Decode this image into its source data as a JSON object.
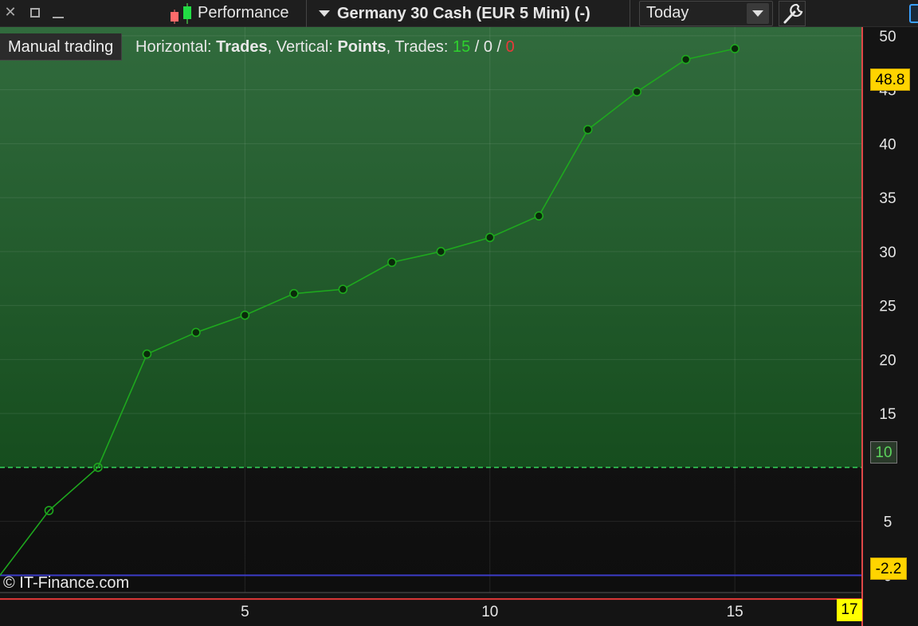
{
  "toolbar": {
    "close_glyph": "✕",
    "panel_label": "Performance",
    "instrument": "Germany 30 Cash (EUR 5 Mini) (-)",
    "period": "Today"
  },
  "header": {
    "manual_trading": "Manual trading",
    "horizontal_label": "Horizontal: ",
    "horizontal_value": "Trades",
    "vertical_label": ", Vertical: ",
    "vertical_value": "Points",
    "trades_label": ", Trades: ",
    "trades_total": "15",
    "sep1": " / ",
    "trades_neutral": "0",
    "sep2": " / ",
    "trades_losing": "0"
  },
  "copyright": "© IT-Finance.com",
  "tags": {
    "top_value": "48.8",
    "bottom_value": "-2.2",
    "threshold_value": "10",
    "last_x": "17"
  },
  "colors": {
    "line": "#1ea81e",
    "profit_zone_top": "#316b3d",
    "profit_zone_bottom": "#164d1e",
    "zero_line": "#3c3cc8",
    "drawdown_line": "#e23838",
    "axis_border": "#e04848"
  },
  "chart_data": {
    "type": "line",
    "title": "",
    "xlabel": "Trades",
    "ylabel": "Points",
    "x": [
      0,
      1,
      2,
      3,
      4,
      5,
      6,
      7,
      8,
      9,
      10,
      11,
      12,
      13,
      14,
      15
    ],
    "series": [
      {
        "values": [
          0,
          6,
          10,
          20.5,
          22.5,
          24.1,
          26.1,
          26.5,
          29,
          30,
          31.3,
          33.3,
          41.3,
          44.8,
          47.8,
          48.8
        ],
        "markers_hollow": [
          1,
          2
        ]
      }
    ],
    "xlim": [
      0,
      17.6
    ],
    "ylim": [
      -4.7,
      50.8
    ],
    "x_ticks": [
      5,
      10,
      15
    ],
    "y_ticks": [
      0,
      5,
      10,
      15,
      20,
      25,
      30,
      35,
      40,
      45,
      50
    ],
    "threshold": 10,
    "drawdown": -2.2,
    "max": 48.8,
    "last_x": 17,
    "grid": true
  }
}
